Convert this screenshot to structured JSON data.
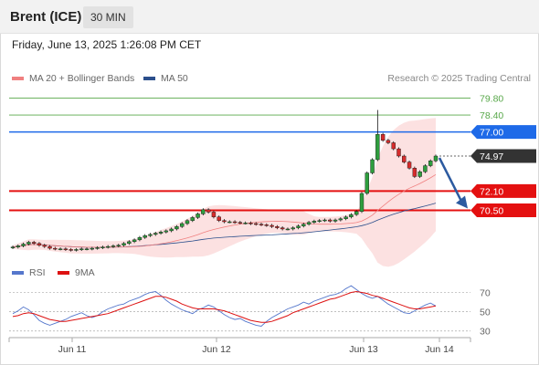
{
  "header": {
    "symbol": "Brent (ICE)",
    "timeframe": "30 MIN"
  },
  "datetime": "Friday, June 13, 2025 1:26:08 PM CET",
  "credit": "Research © 2025 Trading Central",
  "legend": [
    {
      "label": "MA 20 + Bollinger Bands",
      "color": "#f08080"
    },
    {
      "label": "MA 50",
      "color": "#2c4f8c"
    }
  ],
  "rsi_legend": [
    {
      "label": "RSI",
      "color": "#5577cc"
    },
    {
      "label": "9MA",
      "color": "#dd1111"
    }
  ],
  "chart_data": [
    {
      "type": "candlestick",
      "x_ticks": [
        "Jun 11",
        "Jun 12",
        "Jun 13",
        "Jun 14"
      ],
      "ylim": [
        66.6,
        80.6
      ],
      "current_price": "74.97",
      "levels": [
        {
          "value": 79.8,
          "label": "79.80",
          "kind": "target",
          "color": "#58a84a"
        },
        {
          "value": 78.4,
          "label": "78.40",
          "kind": "target",
          "color": "#58a84a"
        },
        {
          "value": 77.0,
          "label": "77.00",
          "kind": "pivot",
          "color": "#1e6ae8"
        },
        {
          "value": 72.1,
          "label": "72.10",
          "kind": "support",
          "color": "#e41010"
        },
        {
          "value": 70.5,
          "label": "70.50",
          "kind": "support",
          "color": "#e41010"
        }
      ],
      "close_series": [
        67.45,
        67.55,
        67.7,
        67.85,
        67.75,
        67.6,
        67.5,
        67.35,
        67.3,
        67.3,
        67.25,
        67.2,
        67.25,
        67.3,
        67.3,
        67.35,
        67.4,
        67.45,
        67.5,
        67.55,
        67.6,
        67.75,
        67.9,
        68.05,
        68.25,
        68.4,
        68.5,
        68.6,
        68.7,
        68.8,
        68.95,
        69.15,
        69.4,
        69.65,
        69.9,
        70.2,
        70.55,
        70.35,
        69.95,
        69.65,
        69.55,
        69.55,
        69.5,
        69.45,
        69.45,
        69.4,
        69.35,
        69.3,
        69.25,
        69.15,
        69.05,
        68.95,
        68.95,
        69.05,
        69.2,
        69.35,
        69.5,
        69.6,
        69.65,
        69.7,
        69.6,
        69.7,
        69.8,
        69.95,
        70.15,
        70.4,
        71.9,
        73.6,
        74.7,
        76.8,
        76.3,
        76.1,
        75.6,
        75.0,
        74.5,
        74.0,
        73.3,
        73.7,
        74.2,
        74.6,
        75.0
      ],
      "annotation": "Expected move: down toward 70.50"
    },
    {
      "type": "line",
      "title": "RSI",
      "yticks": [
        70,
        50,
        30
      ],
      "ylim": [
        25,
        80
      ],
      "series": [
        {
          "name": "RSI",
          "values": [
            48,
            51,
            55,
            52,
            47,
            41,
            38,
            36,
            38,
            40,
            42,
            45,
            47,
            49,
            46,
            44,
            46,
            50,
            53,
            55,
            57,
            58,
            61,
            63,
            65,
            68,
            70,
            71,
            67,
            62,
            58,
            55,
            52,
            50,
            48,
            52,
            54,
            57,
            55,
            51,
            47,
            44,
            42,
            43,
            40,
            38,
            36,
            35,
            40,
            44,
            47,
            50,
            53,
            55,
            57,
            60,
            58,
            61,
            63,
            65,
            67,
            68,
            70,
            74,
            77,
            73,
            69,
            66,
            64,
            66,
            62,
            58,
            55,
            52,
            49,
            48,
            51,
            54,
            57,
            59,
            56
          ]
        },
        {
          "name": "9MA",
          "values": [
            45,
            46,
            48,
            49,
            48,
            46,
            44,
            42,
            41,
            40,
            40,
            41,
            42,
            43,
            44,
            45,
            46,
            47,
            48,
            50,
            52,
            54,
            56,
            58,
            60,
            62,
            64,
            66,
            66,
            65,
            63,
            61,
            58,
            56,
            54,
            53,
            53,
            53,
            53,
            52,
            51,
            49,
            47,
            45,
            43,
            41,
            40,
            39,
            39,
            40,
            42,
            44,
            46,
            49,
            51,
            53,
            55,
            57,
            59,
            61,
            63,
            64,
            66,
            68,
            70,
            71,
            70,
            69,
            67,
            66,
            64,
            62,
            60,
            58,
            56,
            54,
            53,
            53,
            54,
            55,
            56
          ]
        }
      ]
    }
  ]
}
